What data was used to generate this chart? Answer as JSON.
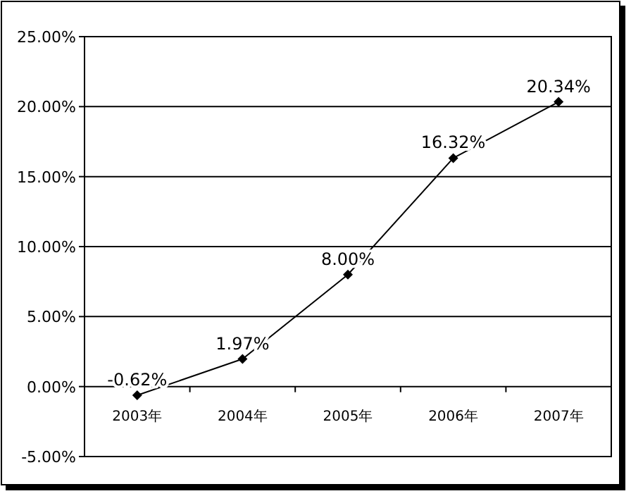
{
  "chart_data": {
    "type": "line",
    "categories": [
      "2003年",
      "2004年",
      "2005年",
      "2006年",
      "2007年"
    ],
    "values": [
      -0.62,
      1.97,
      8.0,
      16.32,
      20.34
    ],
    "value_labels": [
      "-0.62%",
      "1.97%",
      "8.00%",
      "16.32%",
      "20.34%"
    ],
    "color": "#000000",
    "marker": "diamond",
    "grid": "y",
    "ylim": [
      -5,
      25
    ],
    "yticks": [
      {
        "value": -5,
        "label": "-5.00%"
      },
      {
        "value": 0,
        "label": "0.00%"
      },
      {
        "value": 5,
        "label": "5.00%"
      },
      {
        "value": 10,
        "label": "10.00%"
      },
      {
        "value": 15,
        "label": "15.00%"
      },
      {
        "value": 20,
        "label": "20.00%"
      },
      {
        "value": 25,
        "label": "25.00%"
      }
    ]
  }
}
